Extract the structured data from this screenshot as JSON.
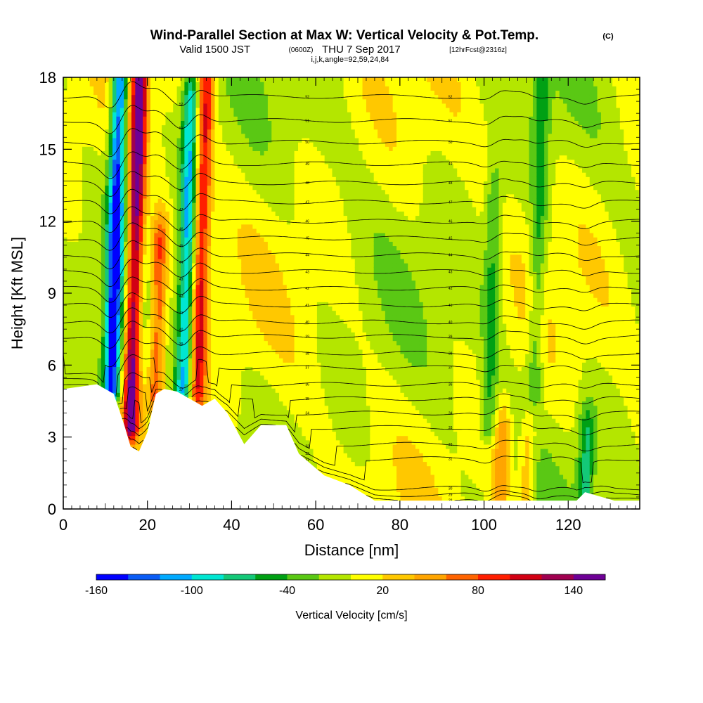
{
  "header": {
    "title": "Wind-Parallel Section at Max W: Vertical Velocity & Pot.Temp.",
    "title_tag": "(C)",
    "valid_prefix": "Valid 1500 JST",
    "valid_utc": "(0600Z)",
    "valid_date": "THU 7 Sep 2017",
    "forecast": "[12hrFcst@2316z]",
    "ijk": "i,j,k,angle=92,59,24,84"
  },
  "chart_data": {
    "type": "heatmap",
    "xlabel": "Distance [nm]",
    "ylabel": "Height [Kft MSL]",
    "xlim": [
      0,
      137
    ],
    "ylim": [
      0,
      18
    ],
    "x_ticks": [
      0,
      20,
      40,
      60,
      80,
      100,
      120
    ],
    "y_ticks": [
      0,
      3,
      6,
      9,
      12,
      15,
      18
    ],
    "colorbar": {
      "label": "Vertical Velocity [cm/s]",
      "levels": [
        -160,
        -140,
        -120,
        -100,
        -80,
        -60,
        -40,
        -20,
        0,
        20,
        40,
        60,
        80,
        100,
        120,
        140,
        160
      ],
      "tick_labels": [
        "-160",
        "-100",
        "-40",
        "20",
        "80",
        "140"
      ],
      "tick_values": [
        -160,
        -100,
        -40,
        20,
        80,
        140
      ],
      "colors": [
        "#0000ff",
        "#0a5cf5",
        "#00aaff",
        "#00e6d2",
        "#14c878",
        "#00a014",
        "#5ac814",
        "#b4e600",
        "#ffff00",
        "#ffc800",
        "#ffa500",
        "#ff6400",
        "#ff1e00",
        "#d20014",
        "#a00050",
        "#6e0096"
      ]
    },
    "updraft_cores_cm_s": [
      {
        "x": 16,
        "y_bottom": 3.5,
        "y_top": 18,
        "w": 150
      },
      {
        "x": 22,
        "y_bottom": 4.8,
        "y_top": 11,
        "w": 85
      },
      {
        "x": 32,
        "y_bottom": 4.8,
        "y_top": 18,
        "w": 100
      },
      {
        "x": 104,
        "y_bottom": 0.7,
        "y_top": 3,
        "w": 55
      },
      {
        "x": 110,
        "y_bottom": 0.5,
        "y_top": 2.5,
        "w": 45
      }
    ],
    "downdraft_cores_cm_s": [
      {
        "x": 11.5,
        "y_bottom": 5,
        "y_top": 18,
        "w": -150
      },
      {
        "x": 28.5,
        "y_bottom": 5,
        "y_top": 17,
        "w": -100
      },
      {
        "x": 101,
        "y_bottom": 3.5,
        "y_top": 13,
        "w": -45
      },
      {
        "x": 112,
        "y_bottom": 5,
        "y_top": 18,
        "w": -45
      },
      {
        "x": 124,
        "y_bottom": 0.7,
        "y_top": 3,
        "w": -60
      }
    ],
    "terrain_top_kft": [
      {
        "x": 0,
        "y": 5.0
      },
      {
        "x": 8,
        "y": 5.2
      },
      {
        "x": 12,
        "y": 4.8
      },
      {
        "x": 14.5,
        "y": 3.5
      },
      {
        "x": 16,
        "y": 2.6
      },
      {
        "x": 18,
        "y": 2.4
      },
      {
        "x": 20,
        "y": 3.2
      },
      {
        "x": 22,
        "y": 4.8
      },
      {
        "x": 24,
        "y": 5.0
      },
      {
        "x": 27,
        "y": 4.9
      },
      {
        "x": 30,
        "y": 4.6
      },
      {
        "x": 33,
        "y": 4.3
      },
      {
        "x": 36,
        "y": 4.6
      },
      {
        "x": 39,
        "y": 4.0
      },
      {
        "x": 43,
        "y": 2.7
      },
      {
        "x": 47,
        "y": 3.5
      },
      {
        "x": 53,
        "y": 3.5
      },
      {
        "x": 56,
        "y": 2.3
      },
      {
        "x": 62,
        "y": 1.4
      },
      {
        "x": 68,
        "y": 1.0
      },
      {
        "x": 74,
        "y": 0.35
      },
      {
        "x": 122,
        "y": 0.35
      },
      {
        "x": 124,
        "y": 0.7
      },
      {
        "x": 131,
        "y": 0.35
      },
      {
        "x": 137,
        "y": 0.35
      }
    ],
    "theta_contours_k": [
      "28",
      "29",
      "30",
      "31",
      "32",
      "33",
      "34",
      "35",
      "36",
      "37",
      "38",
      "39",
      "40",
      "41",
      "42",
      "43",
      "44",
      "45",
      "46",
      "47",
      "48",
      "49",
      "50",
      "51",
      "52"
    ],
    "theta_contour_levels_kft": [
      0.4,
      0.9,
      1.5,
      2.1,
      2.7,
      3.4,
      4.0,
      4.6,
      5.2,
      5.9,
      6.5,
      7.2,
      7.8,
      8.5,
      9.2,
      9.9,
      10.6,
      11.3,
      12.0,
      12.8,
      13.6,
      14.4,
      15.3,
      16.2,
      17.2
    ]
  }
}
